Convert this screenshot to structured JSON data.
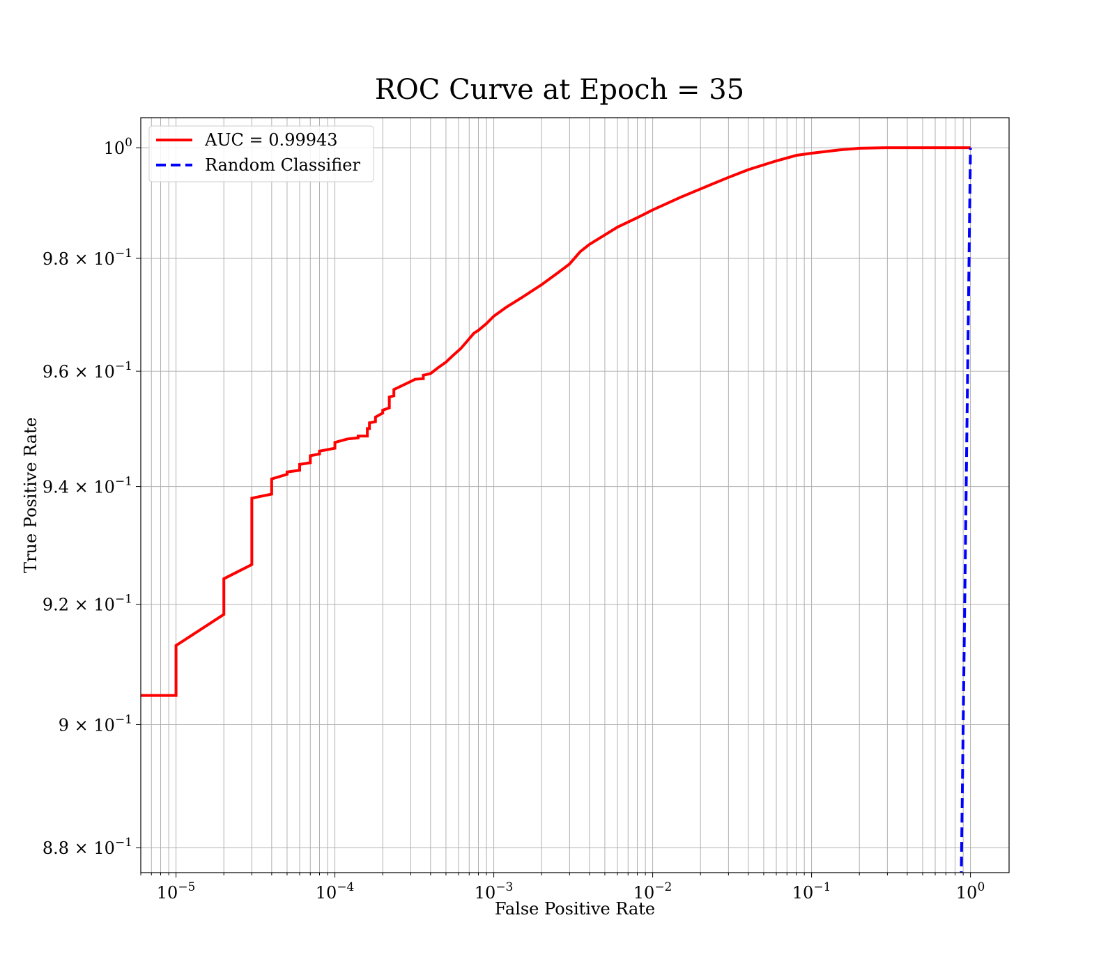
{
  "chart_data": {
    "type": "line",
    "title": "ROC Curve at Epoch = 35",
    "xlabel": "False Positive Rate",
    "ylabel": "True Positive Rate",
    "xscale": "log",
    "yscale": "log",
    "xlim": [
      6e-06,
      1.75
    ],
    "ylim": [
      0.876,
      1.0055
    ],
    "grid": true,
    "x_ticks": [
      {
        "value": 1e-05,
        "base": "10",
        "exp": "−5"
      },
      {
        "value": 0.0001,
        "base": "10",
        "exp": "−4"
      },
      {
        "value": 0.001,
        "base": "10",
        "exp": "−3"
      },
      {
        "value": 0.01,
        "base": "10",
        "exp": "−2"
      },
      {
        "value": 0.1,
        "base": "10",
        "exp": "−1"
      },
      {
        "value": 1,
        "base": "10",
        "exp": "0"
      }
    ],
    "y_ticks": [
      {
        "value": 0.88,
        "base": "8.8 × 10",
        "exp": "−1"
      },
      {
        "value": 0.9,
        "base": "9 × 10",
        "exp": "−1"
      },
      {
        "value": 0.92,
        "base": "9.2 × 10",
        "exp": "−1"
      },
      {
        "value": 0.94,
        "base": "9.4 × 10",
        "exp": "−1"
      },
      {
        "value": 0.96,
        "base": "9.6 × 10",
        "exp": "−1"
      },
      {
        "value": 0.98,
        "base": "9.8 × 10",
        "exp": "−1"
      },
      {
        "value": 1.0,
        "base": "10",
        "exp": "0"
      }
    ],
    "legend": {
      "position": "upper-left"
    },
    "series": [
      {
        "name": "AUC = 0.99943",
        "color": "#ff0000",
        "style": "solid",
        "points": [
          [
            1e-06,
            0.9048
          ],
          [
            1e-05,
            0.9048
          ],
          [
            1e-05,
            0.9131
          ],
          [
            2e-05,
            0.9183
          ],
          [
            2e-05,
            0.9243
          ],
          [
            3e-05,
            0.9267
          ],
          [
            3e-05,
            0.938
          ],
          [
            4e-05,
            0.9387
          ],
          [
            4e-05,
            0.9413
          ],
          [
            5e-05,
            0.9421
          ],
          [
            5e-05,
            0.9425
          ],
          [
            6e-05,
            0.9428
          ],
          [
            6e-05,
            0.9438
          ],
          [
            7e-05,
            0.9441
          ],
          [
            7e-05,
            0.9453
          ],
          [
            8e-05,
            0.9456
          ],
          [
            8e-05,
            0.9461
          ],
          [
            0.0001,
            0.9466
          ],
          [
            0.0001,
            0.9476
          ],
          [
            0.00012,
            0.9482
          ],
          [
            0.00014,
            0.9484
          ],
          [
            0.00014,
            0.9487
          ],
          [
            0.00016,
            0.9487
          ],
          [
            0.00016,
            0.95
          ],
          [
            0.000165,
            0.95
          ],
          [
            0.000165,
            0.951
          ],
          [
            0.00018,
            0.9512
          ],
          [
            0.00018,
            0.952
          ],
          [
            0.0002,
            0.9527
          ],
          [
            0.0002,
            0.9532
          ],
          [
            0.00022,
            0.9536
          ],
          [
            0.00022,
            0.9555
          ],
          [
            0.000235,
            0.9557
          ],
          [
            0.000235,
            0.9568
          ],
          [
            0.00028,
            0.9578
          ],
          [
            0.00032,
            0.9586
          ],
          [
            0.00036,
            0.9587
          ],
          [
            0.00036,
            0.9593
          ],
          [
            0.0004,
            0.9596
          ],
          [
            0.00045,
            0.9607
          ],
          [
            0.0005,
            0.9616
          ],
          [
            0.00055,
            0.9627
          ],
          [
            0.00062,
            0.964
          ],
          [
            0.00068,
            0.9653
          ],
          [
            0.00075,
            0.9667
          ],
          [
            0.0008,
            0.9672
          ],
          [
            0.0009,
            0.9684
          ],
          [
            0.001,
            0.9697
          ],
          [
            0.0012,
            0.9713
          ],
          [
            0.0015,
            0.973
          ],
          [
            0.002,
            0.9753
          ],
          [
            0.0025,
            0.9773
          ],
          [
            0.003,
            0.979
          ],
          [
            0.0035,
            0.9812
          ],
          [
            0.004,
            0.9825
          ],
          [
            0.005,
            0.9842
          ],
          [
            0.006,
            0.9856
          ],
          [
            0.008,
            0.9873
          ],
          [
            0.01,
            0.9887
          ],
          [
            0.015,
            0.991
          ],
          [
            0.02,
            0.9925
          ],
          [
            0.03,
            0.9946
          ],
          [
            0.04,
            0.996
          ],
          [
            0.06,
            0.9976
          ],
          [
            0.08,
            0.9986
          ],
          [
            0.1,
            0.999
          ],
          [
            0.15,
            0.9996
          ],
          [
            0.2,
            0.9999
          ],
          [
            0.3,
            1.0
          ],
          [
            1.0,
            1.0
          ]
        ]
      },
      {
        "name": "Random Classifier",
        "color": "#0000ff",
        "style": "dashed",
        "points": [
          [
            0.87,
            0.87
          ],
          [
            1.0,
            1.0
          ]
        ]
      }
    ]
  }
}
